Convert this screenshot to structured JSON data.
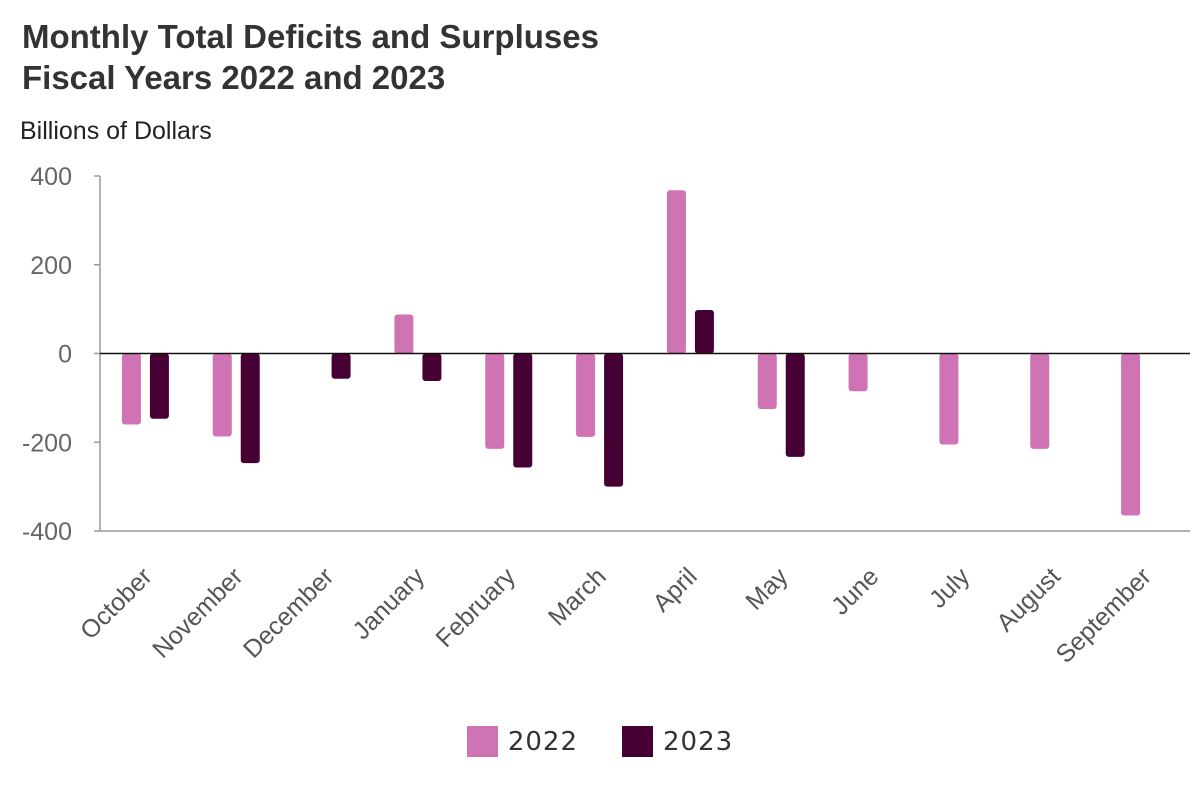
{
  "chart_data": {
    "type": "bar",
    "title_lines": [
      "Monthly Total Deficits and Surpluses",
      "Fiscal Years 2022 and 2023"
    ],
    "ylabel": "Billions of Dollars",
    "xlabel": "",
    "categories": [
      "October",
      "November",
      "December",
      "January",
      "February",
      "March",
      "April",
      "May",
      "June",
      "July",
      "August",
      "September"
    ],
    "series": [
      {
        "name": "2022",
        "color": "#cf73b4",
        "values": [
          -160,
          -187,
          null,
          88,
          -215,
          -188,
          368,
          -125,
          -85,
          -205,
          -215,
          -365
        ]
      },
      {
        "name": "2023",
        "color": "#460033",
        "values": [
          -147,
          -247,
          -57,
          -62,
          -257,
          -300,
          98,
          -233,
          null,
          null,
          null,
          null
        ]
      }
    ],
    "ylim": [
      -400,
      400
    ],
    "yticks": [
      400,
      200,
      0,
      -200,
      -400
    ],
    "ytick_labels": [
      "400",
      "200",
      "0",
      "-200",
      "-400"
    ],
    "legend_position": "bottom-center"
  }
}
